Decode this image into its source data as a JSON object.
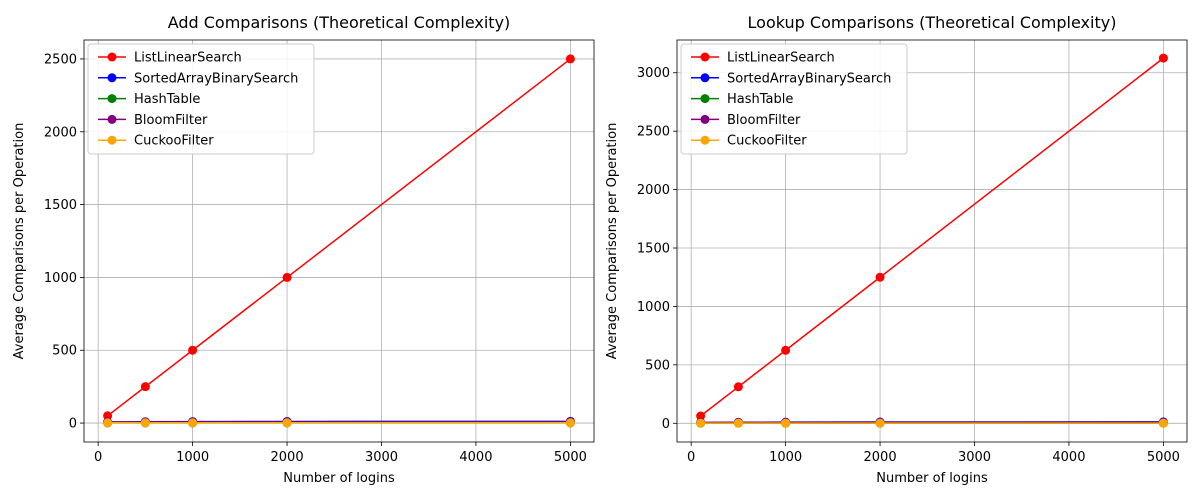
{
  "chart_data": [
    {
      "type": "line",
      "title": "Add Comparisons (Theoretical Complexity)",
      "xlabel": "Number of logins",
      "ylabel": "Average Comparisons per Operation",
      "x": [
        100,
        500,
        1000,
        2000,
        5000
      ],
      "xlim": [
        -150,
        5250
      ],
      "ylim": [
        -130,
        2630
      ],
      "xticks": [
        0,
        1000,
        2000,
        3000,
        4000,
        5000
      ],
      "yticks": [
        0,
        500,
        1000,
        1500,
        2000,
        2500
      ],
      "grid": true,
      "legend_position": "top-left",
      "series": [
        {
          "name": "ListLinearSearch",
          "color": "#ff0000",
          "values": [
            50,
            250,
            500,
            1000,
            2500
          ]
        },
        {
          "name": "SortedArrayBinarySearch",
          "color": "#0000ff",
          "values": [
            7,
            9,
            10,
            11,
            12
          ]
        },
        {
          "name": "HashTable",
          "color": "#008000",
          "values": [
            1,
            1,
            1,
            1,
            1
          ]
        },
        {
          "name": "BloomFilter",
          "color": "#800080",
          "values": [
            7,
            7,
            7,
            7,
            7
          ]
        },
        {
          "name": "CuckooFilter",
          "color": "#ffa500",
          "values": [
            2,
            2,
            2,
            2,
            2
          ]
        }
      ]
    },
    {
      "type": "line",
      "title": "Lookup Comparisons (Theoretical Complexity)",
      "xlabel": "Number of logins",
      "ylabel": "Average Comparisons per Operation",
      "x": [
        100,
        500,
        1000,
        2000,
        5000
      ],
      "xlim": [
        -150,
        5250
      ],
      "ylim": [
        -160,
        3280
      ],
      "xticks": [
        0,
        1000,
        2000,
        3000,
        4000,
        5000
      ],
      "yticks": [
        0,
        500,
        1000,
        1500,
        2000,
        2500,
        3000
      ],
      "grid": true,
      "legend_position": "top-left",
      "series": [
        {
          "name": "ListLinearSearch",
          "color": "#ff0000",
          "values": [
            62.5,
            312.5,
            625,
            1250,
            3125
          ]
        },
        {
          "name": "SortedArrayBinarySearch",
          "color": "#0000ff",
          "values": [
            7,
            9,
            10,
            11,
            12
          ]
        },
        {
          "name": "HashTable",
          "color": "#008000",
          "values": [
            1,
            1,
            1,
            1,
            1
          ]
        },
        {
          "name": "BloomFilter",
          "color": "#800080",
          "values": [
            7,
            7,
            7,
            7,
            7
          ]
        },
        {
          "name": "CuckooFilter",
          "color": "#ffa500",
          "values": [
            2,
            2,
            2,
            2,
            2
          ]
        }
      ]
    }
  ]
}
